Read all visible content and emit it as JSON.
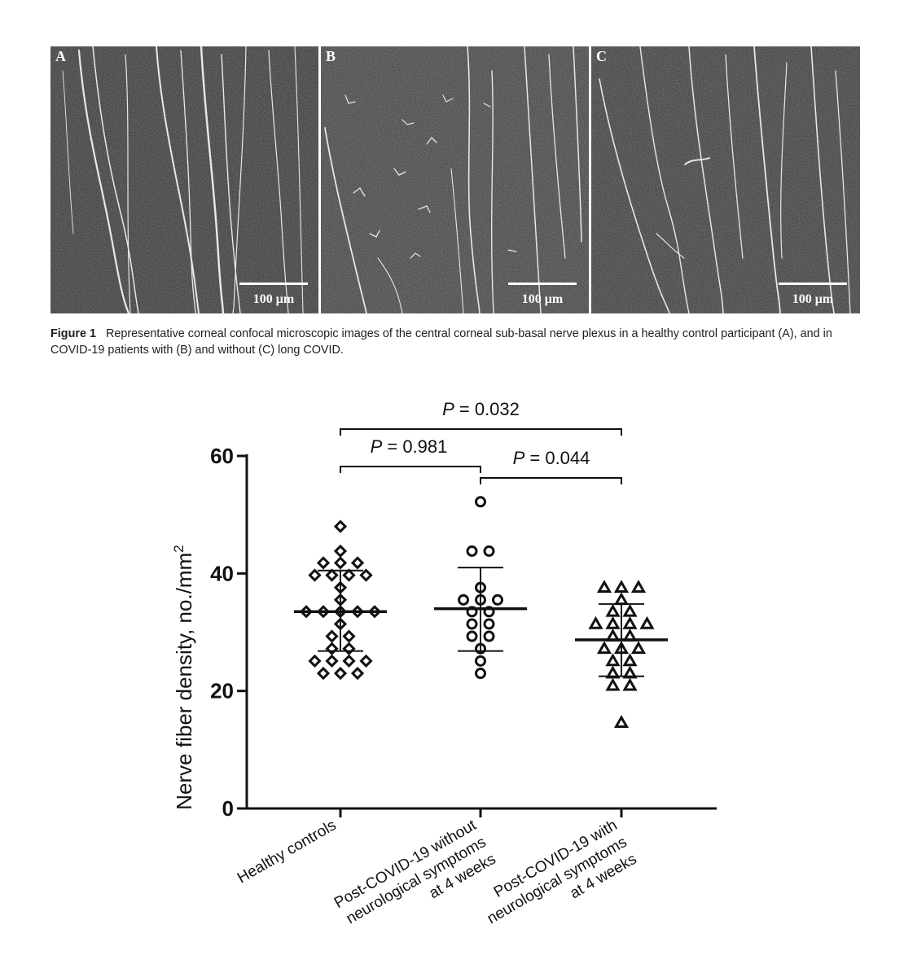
{
  "figure1": {
    "panels": [
      {
        "letter": "A",
        "scale_bar": "100 μm"
      },
      {
        "letter": "B",
        "scale_bar": "100 μm"
      },
      {
        "letter": "C",
        "scale_bar": "100 μm"
      }
    ],
    "caption_label": "Figure 1",
    "caption_text": "Representative corneal confocal microscopic images of the central corneal sub-basal nerve plexus in a healthy control participant (A), and in COVID-19 patients with (B) and without (C) long COVID."
  },
  "chart_data": {
    "type": "scatter",
    "ylabel": "Nerve fiber density, no./mm",
    "ylabel_sup": "2",
    "ylim": [
      0,
      60
    ],
    "yticks": [
      0,
      20,
      40,
      60
    ],
    "categories": [
      "Healthy controls",
      "Post-COVID-19 without neurological symptoms at 4 weeks",
      "Post-COVID-19 with neurological symptoms at 4 weeks"
    ],
    "category_lines": [
      [
        "Healthy controls"
      ],
      [
        "Post-COVID-19 without",
        "neurological symptoms",
        "at 4 weeks"
      ],
      [
        "Post-COVID-19 with",
        "neurological symptoms",
        "at 4 weeks"
      ]
    ],
    "groups": [
      {
        "marker": "diamond",
        "mean": 33.5,
        "sd_low": 26.8,
        "sd_high": 40.5,
        "points": [
          48,
          43.8,
          41.8,
          41.8,
          41.8,
          39.7,
          39.7,
          39.7,
          39.7,
          37.6,
          35.5,
          33.5,
          33.5,
          33.5,
          33.5,
          33.5,
          31.4,
          29.3,
          29.3,
          27.2,
          27.2,
          25.1,
          25.1,
          25.1,
          25.1,
          23,
          23,
          23
        ]
      },
      {
        "marker": "circle",
        "mean": 34,
        "sd_low": 26.8,
        "sd_high": 41,
        "points": [
          52.2,
          43.8,
          43.8,
          37.6,
          35.5,
          35.5,
          35.5,
          33.5,
          33.5,
          31.4,
          31.4,
          29.3,
          29.3,
          27.2,
          25.1,
          23
        ]
      },
      {
        "marker": "triangle",
        "mean": 28.7,
        "sd_low": 22.5,
        "sd_high": 34.8,
        "points": [
          37.6,
          37.6,
          37.6,
          35.5,
          33.5,
          33.5,
          31.4,
          31.4,
          31.4,
          31.4,
          29.3,
          29.3,
          27.2,
          27.2,
          27.2,
          25.1,
          25.1,
          23,
          23,
          20.9,
          20.9,
          14.6
        ]
      }
    ],
    "comparisons": [
      {
        "from": 0,
        "to": 2,
        "label": "P = 0.032",
        "p": "0.032"
      },
      {
        "from": 0,
        "to": 1,
        "label": "P = 0.981",
        "p": "0.981"
      },
      {
        "from": 1,
        "to": 2,
        "label": "P = 0.044",
        "p": "0.044"
      }
    ]
  }
}
